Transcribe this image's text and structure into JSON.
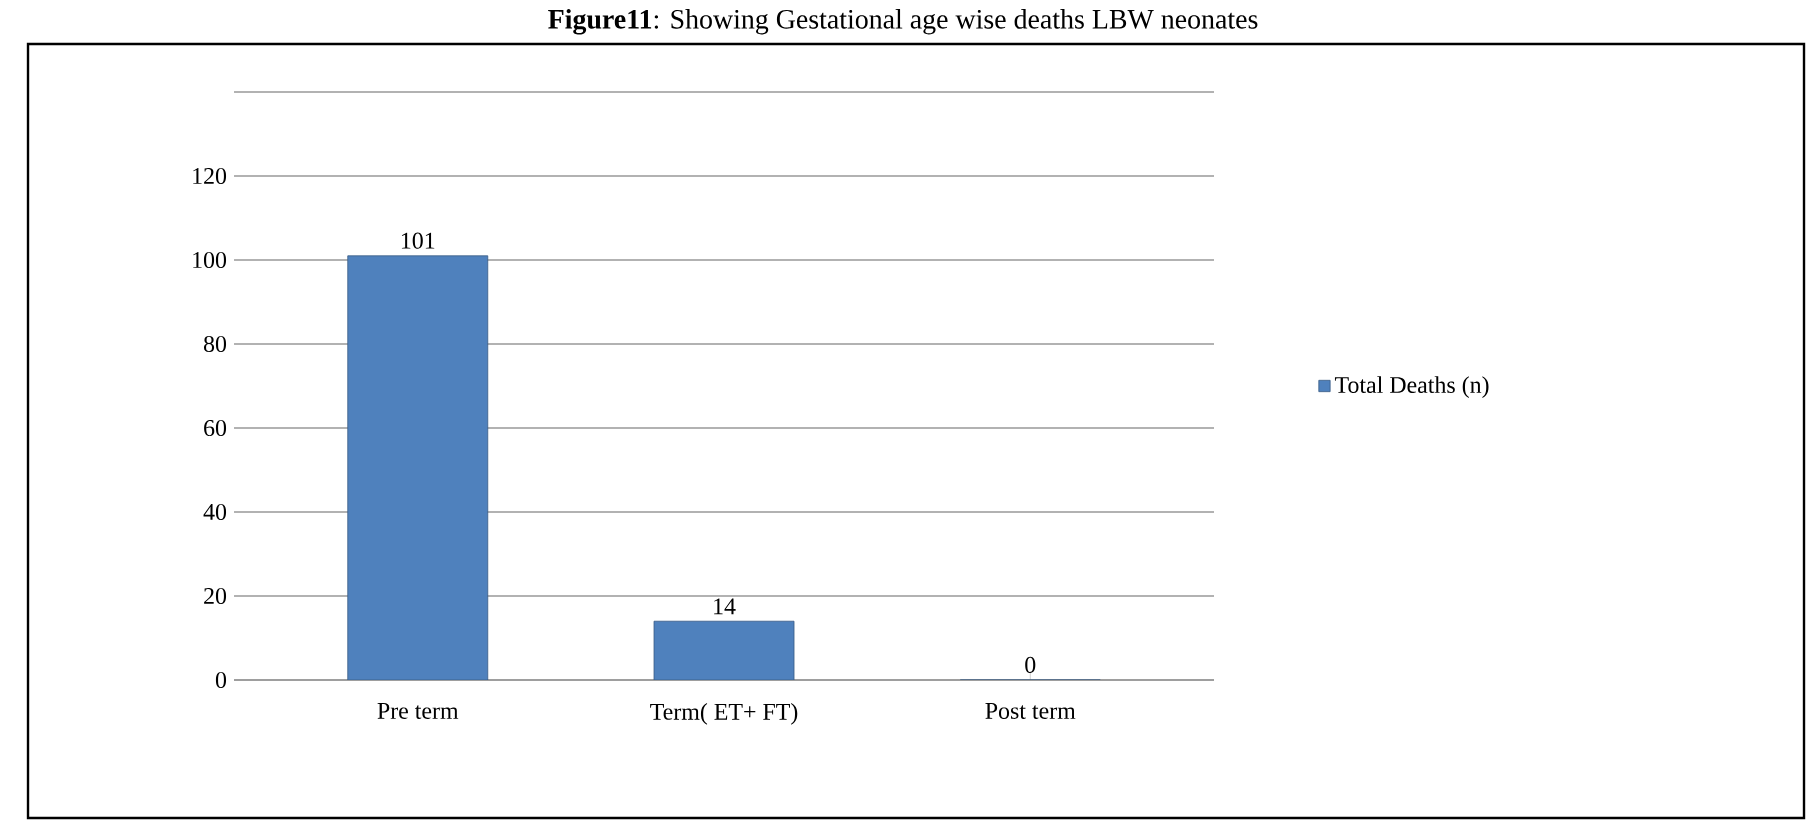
{
  "chart_data": {
    "type": "bar",
    "title": "**Figure11**: Showing Gestational age wise deaths LBW neonates",
    "categories": [
      "Pre term",
      "Term( ET+ FT)",
      "Post term"
    ],
    "series": [
      {
        "name": "Total Deaths (n)",
        "color": "#4f81bd",
        "values": [
          101,
          14,
          0
        ]
      }
    ],
    "ylim": [
      0,
      140
    ],
    "yticks": [
      0,
      20,
      40,
      60,
      80,
      100,
      120,
      {
        "value": 140,
        "label": null
      }
    ],
    "grid": "y",
    "legend": "right",
    "data_labels": true
  }
}
